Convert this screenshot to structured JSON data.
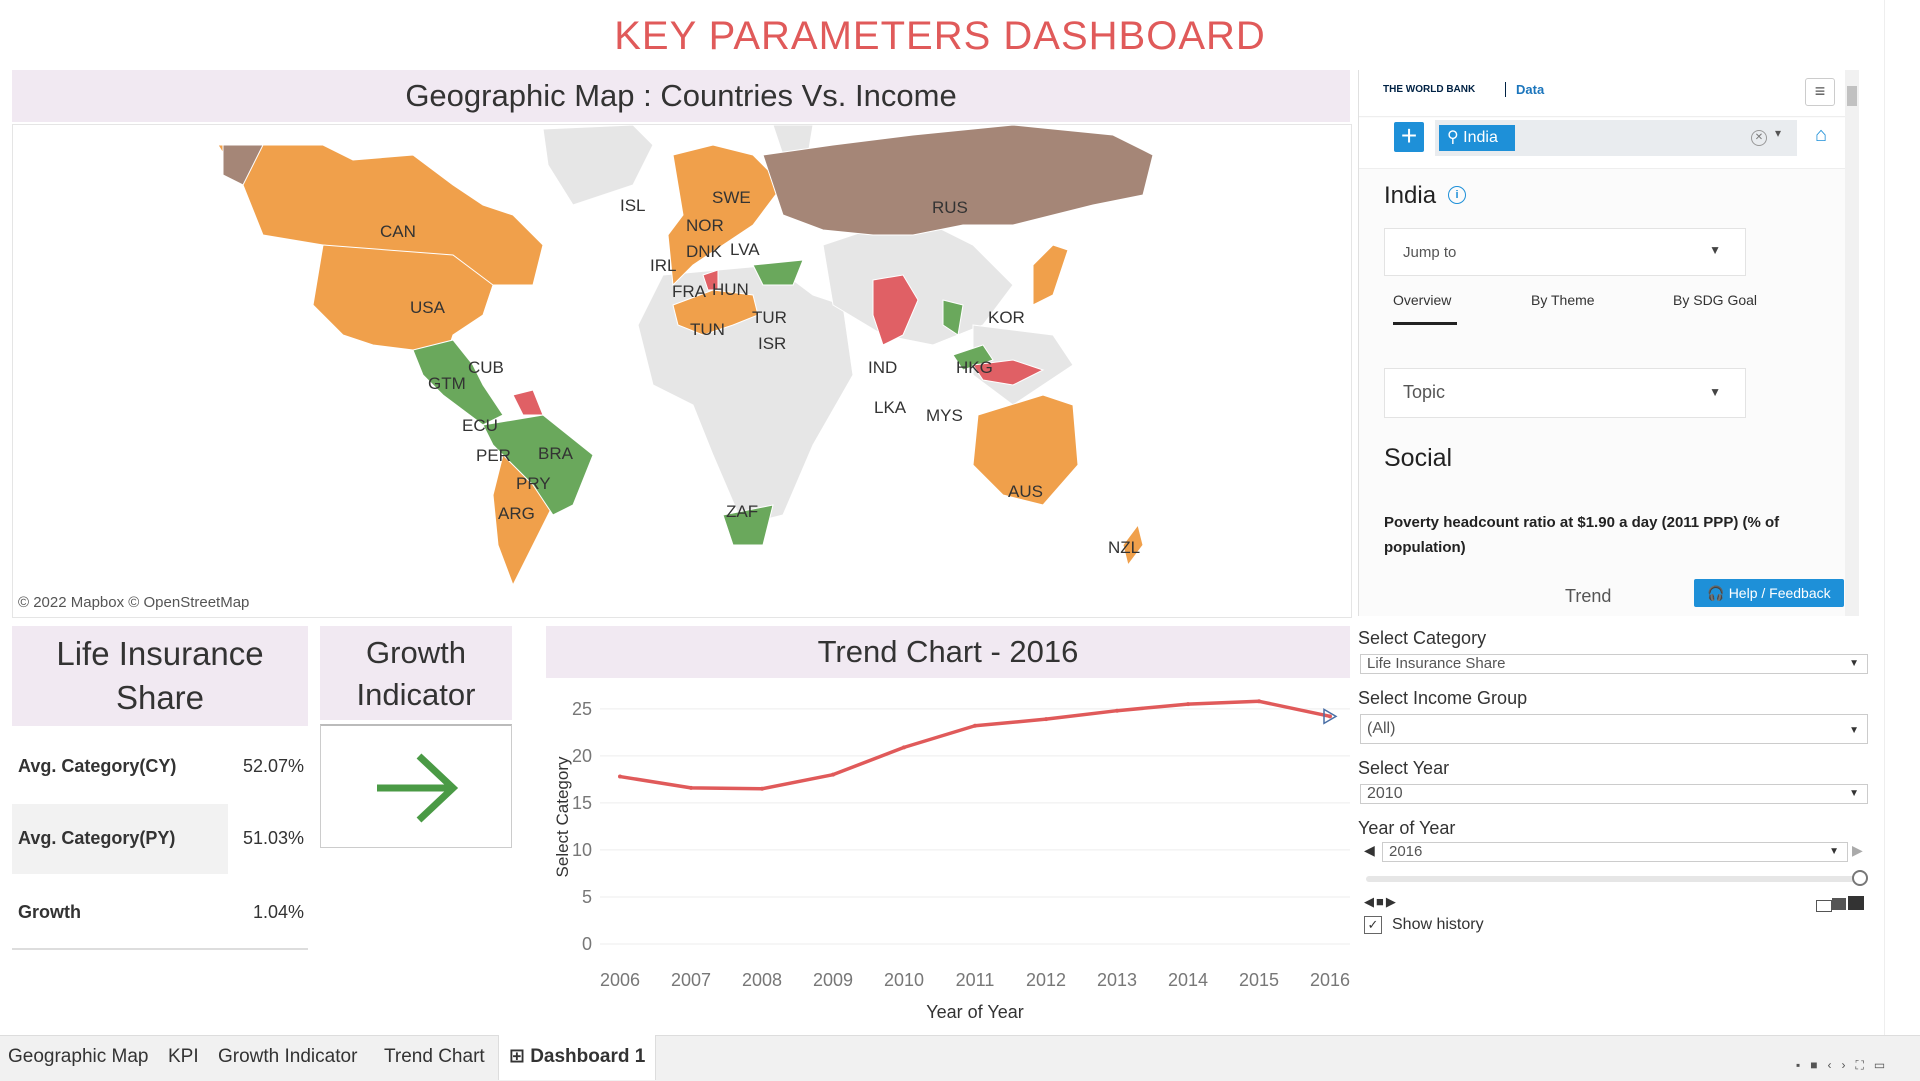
{
  "dashboard": {
    "title": "KEY PARAMETERS DASHBOARD"
  },
  "map": {
    "header": "Geographic Map : Countries Vs. Income",
    "credit": "© 2022 Mapbox © OpenStreetMap",
    "labels": [
      "CAN",
      "USA",
      "CUB",
      "GTM",
      "ECU",
      "PER",
      "BRA",
      "PRY",
      "ARG",
      "ISL",
      "SWE",
      "NOR",
      "DNK",
      "LVA",
      "IRL",
      "FRA",
      "HUN",
      "TUR",
      "TUN",
      "ISR",
      "RUS",
      "KOR",
      "IND",
      "HKG",
      "LKA",
      "MYS",
      "AUS",
      "ZAF",
      "NZL"
    ],
    "colors": {
      "high": "#f0a04b",
      "upper_middle": "#6aa85c",
      "lower_middle": "#e06065",
      "other": "#a58677",
      "no_data": "#e6e6e6"
    }
  },
  "worldbank": {
    "logo": "THE WORLD BANK",
    "data_link": "Data",
    "chip": "India",
    "country": "India",
    "jump_to": "Jump to",
    "tabs": [
      "Overview",
      "By Theme",
      "By SDG Goal"
    ],
    "topic": "Topic",
    "section": "Social",
    "indicator": "Poverty headcount ratio at $1.90 a day (2011 PPP) (% of population)",
    "trend": "Trend",
    "help": "Help / Feedback"
  },
  "kpi": {
    "header": "Life Insurance Share",
    "rows": [
      {
        "label": "Avg. Category(CY)",
        "value": "52.07%"
      },
      {
        "label": "Avg. Category(PY)",
        "value": "51.03%"
      },
      {
        "label": "Growth",
        "value": "1.04%"
      }
    ]
  },
  "growth": {
    "header": "Growth Indicator",
    "direction": "right-arrow-icon",
    "color": "#4a9a45"
  },
  "trend": {
    "header": "Trend Chart - 2016"
  },
  "chart_data": {
    "type": "line",
    "x": [
      2006,
      2007,
      2008,
      2009,
      2010,
      2011,
      2012,
      2013,
      2014,
      2015,
      2016
    ],
    "series": [
      {
        "values": [
          17.8,
          16.6,
          16.5,
          18.0,
          20.9,
          23.2,
          23.9,
          24.8,
          25.5,
          25.8,
          24.2
        ]
      }
    ],
    "xlabel": "Year of Year",
    "ylabel": "Select Category",
    "ylim": [
      0,
      27
    ],
    "yticks": [
      0,
      5,
      10,
      15,
      20,
      25
    ],
    "line_color": "#e05a5a",
    "grid": true
  },
  "controls": {
    "category_label": "Select Category",
    "category_value": "Life Insurance Share",
    "income_label": "Select Income Group",
    "income_value": "(All)",
    "year_label": "Select Year",
    "year_value": "2010",
    "yoy_label": "Year of Year",
    "yoy_value": "2016",
    "history_label": "Show history"
  },
  "tabs": [
    "Geographic Map",
    "KPI",
    "Growth Indicator",
    "Trend Chart",
    "Dashboard 1"
  ]
}
